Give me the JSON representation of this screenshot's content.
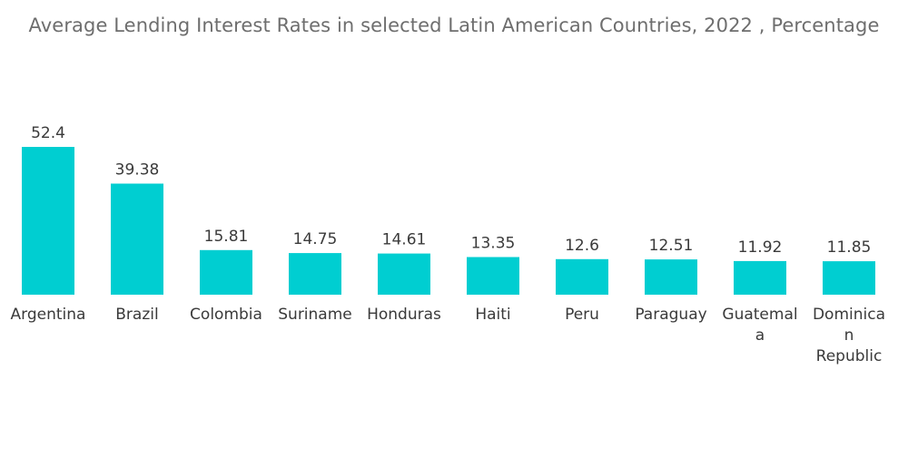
{
  "chart_data": {
    "type": "bar",
    "title": "Average Lending Interest Rates in selected Latin American Countries, 2022 ,  Percentage",
    "xlabel": "",
    "ylabel": "",
    "ylim": [
      0,
      52.4
    ],
    "grid": false,
    "legend": "none",
    "bar_color": "#00CED1",
    "categories": [
      [
        "Argentina"
      ],
      [
        "Brazil"
      ],
      [
        "Colombia"
      ],
      [
        "Suriname"
      ],
      [
        "Honduras"
      ],
      [
        "Haiti"
      ],
      [
        "Peru"
      ],
      [
        "Paraguay"
      ],
      [
        "Guatemal",
        "a"
      ],
      [
        "Dominica",
        "n",
        "Republic"
      ]
    ],
    "values": [
      52.4,
      39.38,
      15.81,
      14.75,
      14.61,
      13.35,
      12.6,
      12.51,
      11.92,
      11.85
    ],
    "value_labels": [
      "52.4",
      "39.38",
      "15.81",
      "14.75",
      "14.61",
      "13.35",
      "12.6",
      "12.51",
      "11.92",
      "11.85"
    ]
  }
}
